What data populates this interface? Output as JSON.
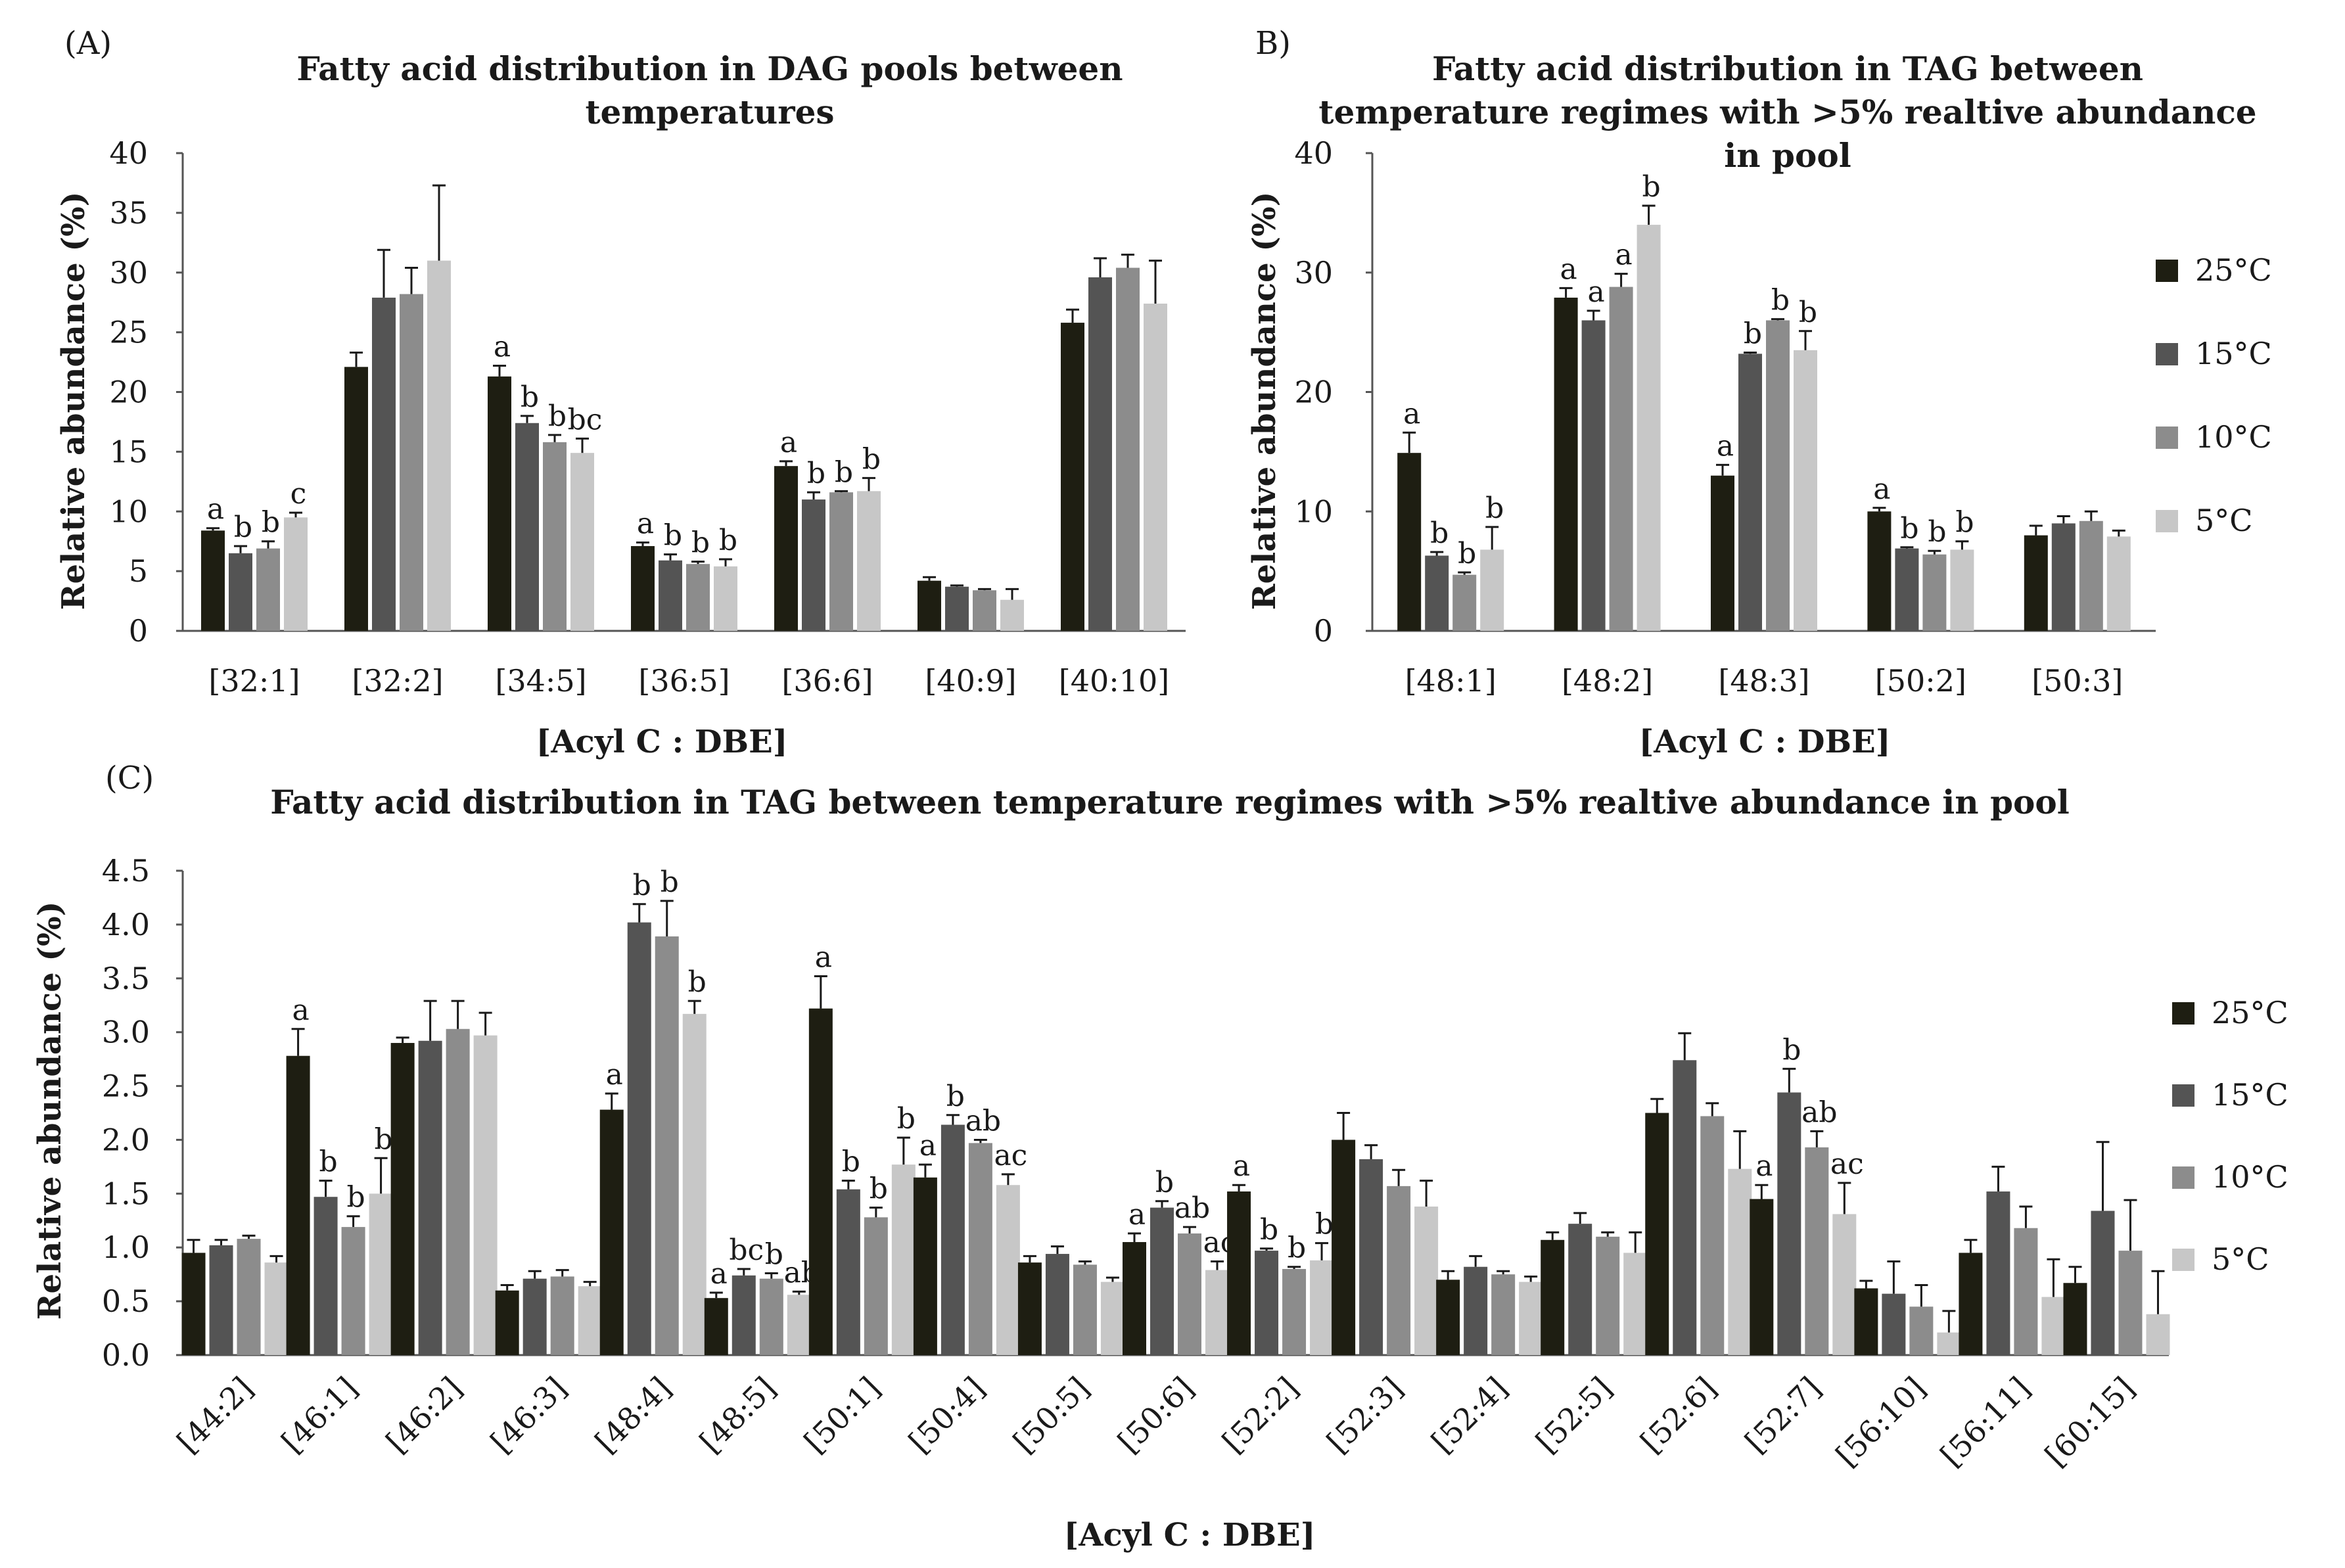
{
  "series_colors": [
    "#1e1e12",
    "#545454",
    "#8c8c8c",
    "#c7c7c7"
  ],
  "chart_data": [
    {
      "id": "A",
      "type": "bar",
      "panel_label": "(A)",
      "title_lines": [
        "Fatty acid distribution in DAG pools between",
        "temperatures"
      ],
      "xlabel": "[Acyl C : DBE]",
      "ylabel": "Relative abundance (%)",
      "ylim": [
        0,
        40
      ],
      "yticks": [
        "0",
        "5",
        "10",
        "15",
        "20",
        "25",
        "30",
        "35",
        "40"
      ],
      "ytick_values": [
        0,
        5,
        10,
        15,
        20,
        25,
        30,
        35,
        40
      ],
      "categories": [
        "[32:1]",
        "[32:2]",
        "[34:5]",
        "[36:5]",
        "[36:6]",
        "[40:9]",
        "[40:10]"
      ],
      "series": [
        {
          "name": "25°C",
          "values": [
            8.4,
            22.1,
            21.3,
            7.1,
            13.8,
            4.2,
            25.8
          ],
          "errors": [
            0.2,
            1.2,
            0.9,
            0.3,
            0.4,
            0.3,
            1.1
          ]
        },
        {
          "name": "15°C",
          "values": [
            6.5,
            27.9,
            17.4,
            5.9,
            11.0,
            3.7,
            29.6
          ],
          "errors": [
            0.6,
            4.0,
            0.6,
            0.5,
            0.6,
            0.1,
            1.6
          ]
        },
        {
          "name": "10°C",
          "values": [
            6.9,
            28.2,
            15.8,
            5.6,
            11.6,
            3.4,
            30.4
          ],
          "errors": [
            0.6,
            2.2,
            0.6,
            0.2,
            0.1,
            0.1,
            1.1
          ]
        },
        {
          "name": "5°C",
          "values": [
            9.5,
            31.0,
            14.9,
            5.4,
            11.7,
            2.6,
            27.4
          ],
          "errors": [
            0.4,
            6.3,
            1.2,
            0.6,
            1.1,
            0.9,
            3.6
          ]
        }
      ],
      "annotations": [
        [
          "a",
          "b",
          "b",
          "c"
        ],
        [
          "",
          "",
          "",
          ""
        ],
        [
          "a",
          "b",
          "b",
          "bc"
        ],
        [
          "a",
          "b",
          "b",
          "b"
        ],
        [
          "a",
          "b",
          "b",
          "b"
        ],
        [
          "",
          "",
          "",
          ""
        ],
        [
          "",
          "",
          "",
          ""
        ]
      ]
    },
    {
      "id": "B",
      "type": "bar",
      "panel_label": "B)",
      "title_lines": [
        "Fatty acid distribution in TAG between",
        "temperature regimes with >5% realtive abundance",
        "in pool"
      ],
      "xlabel": "[Acyl C : DBE]",
      "ylabel": "Relative abundance (%)",
      "ylim": [
        0,
        40
      ],
      "yticks": [
        "0",
        "10",
        "20",
        "30",
        "40"
      ],
      "ytick_values": [
        0,
        10,
        20,
        30,
        40
      ],
      "categories": [
        "[48:1]",
        "[48:2]",
        "[48:3]",
        "[50:2]",
        "[50:3]"
      ],
      "series": [
        {
          "name": "25°C",
          "values": [
            14.9,
            27.9,
            13.0,
            10.0,
            8.0
          ],
          "errors": [
            1.7,
            0.8,
            0.9,
            0.3,
            0.8
          ]
        },
        {
          "name": "15°C",
          "values": [
            6.3,
            26.0,
            23.2,
            6.9,
            9.0
          ],
          "errors": [
            0.3,
            0.8,
            0.1,
            0.1,
            0.6
          ]
        },
        {
          "name": "10°C",
          "values": [
            4.7,
            28.8,
            26.0,
            6.4,
            9.2
          ],
          "errors": [
            0.2,
            1.1,
            0.1,
            0.3,
            0.8
          ]
        },
        {
          "name": "5°C",
          "values": [
            6.8,
            34.0,
            23.5,
            6.8,
            7.9
          ],
          "errors": [
            1.9,
            1.6,
            1.6,
            0.7,
            0.5
          ]
        }
      ],
      "annotations": [
        [
          "a",
          "b",
          "b",
          "b"
        ],
        [
          "a",
          "a",
          "a",
          "b"
        ],
        [
          "a",
          "b",
          "b",
          "b"
        ],
        [
          "a",
          "b",
          "b",
          "b"
        ],
        [
          "",
          "",
          "",
          ""
        ]
      ],
      "legend": [
        "25°C",
        "15°C",
        "10°C",
        "5°C"
      ]
    },
    {
      "id": "C",
      "type": "bar",
      "panel_label": "(C)",
      "title_lines": [
        "Fatty acid distribution in TAG between temperature regimes with >5% realtive abundance in pool"
      ],
      "xlabel": "[Acyl C : DBE]",
      "ylabel": "Relative abundance (%)",
      "ylim": [
        0,
        4.5
      ],
      "yticks": [
        "0.0",
        "0.5",
        "1.0",
        "1.5",
        "2.0",
        "2.5",
        "3.0",
        "3.5",
        "4.0",
        "4.5"
      ],
      "ytick_values": [
        0,
        0.5,
        1.0,
        1.5,
        2.0,
        2.5,
        3.0,
        3.5,
        4.0,
        4.5
      ],
      "categories": [
        "[44:2]",
        "[46:1]",
        "[46:2]",
        "[46:3]",
        "[48:4]",
        "[48:5]",
        "[50:1]",
        "[50:4]",
        "[50:5]",
        "[50:6]",
        "[52:2]",
        "[52:3]",
        "[52:4]",
        "[52:5]",
        "[52:6]",
        "[52:7]",
        "[56:10]",
        "[56:11]",
        "[60:15]"
      ],
      "series": [
        {
          "name": "25°C",
          "values": [
            0.95,
            2.78,
            2.9,
            0.6,
            2.28,
            0.53,
            3.22,
            1.65,
            0.86,
            1.05,
            1.52,
            2.0,
            0.7,
            1.07,
            2.25,
            1.45,
            0.62,
            0.95,
            0.67
          ],
          "errors": [
            0.12,
            0.25,
            0.05,
            0.05,
            0.15,
            0.05,
            0.3,
            0.12,
            0.06,
            0.08,
            0.06,
            0.25,
            0.08,
            0.07,
            0.13,
            0.13,
            0.07,
            0.12,
            0.15
          ]
        },
        {
          "name": "15°C",
          "values": [
            1.02,
            1.47,
            2.92,
            0.71,
            4.02,
            0.74,
            1.54,
            2.14,
            0.94,
            1.37,
            0.97,
            1.82,
            0.82,
            1.22,
            2.74,
            2.44,
            0.57,
            1.52,
            1.34
          ],
          "errors": [
            0.05,
            0.15,
            0.37,
            0.07,
            0.17,
            0.06,
            0.08,
            0.09,
            0.07,
            0.06,
            0.02,
            0.13,
            0.1,
            0.1,
            0.25,
            0.22,
            0.3,
            0.23,
            0.64
          ]
        },
        {
          "name": "10°C",
          "values": [
            1.08,
            1.19,
            3.03,
            0.73,
            3.89,
            0.71,
            1.28,
            1.97,
            0.84,
            1.13,
            0.8,
            1.57,
            0.75,
            1.1,
            2.22,
            1.93,
            0.45,
            1.18,
            0.97
          ],
          "errors": [
            0.03,
            0.1,
            0.26,
            0.06,
            0.33,
            0.05,
            0.09,
            0.03,
            0.03,
            0.06,
            0.02,
            0.15,
            0.03,
            0.04,
            0.12,
            0.15,
            0.2,
            0.2,
            0.47
          ]
        },
        {
          "name": "5°C",
          "values": [
            0.86,
            1.5,
            2.97,
            0.64,
            3.17,
            0.56,
            1.77,
            1.58,
            0.68,
            0.79,
            0.88,
            1.38,
            0.68,
            0.95,
            1.73,
            1.31,
            0.21,
            0.54,
            0.38
          ],
          "errors": [
            0.06,
            0.33,
            0.21,
            0.04,
            0.12,
            0.03,
            0.25,
            0.1,
            0.04,
            0.08,
            0.16,
            0.24,
            0.05,
            0.19,
            0.35,
            0.29,
            0.2,
            0.35,
            0.4
          ]
        }
      ],
      "annotations": [
        [
          "",
          "",
          "",
          ""
        ],
        [
          "a",
          "b",
          "b",
          "b"
        ],
        [
          "",
          "",
          "",
          ""
        ],
        [
          "",
          "",
          "",
          ""
        ],
        [
          "a",
          "b",
          "b",
          "b"
        ],
        [
          "a",
          "bc",
          "b",
          "ab"
        ],
        [
          "a",
          "b",
          "b",
          "b"
        ],
        [
          "a",
          "b",
          "ab",
          "ac"
        ],
        [
          "",
          "",
          "",
          ""
        ],
        [
          "a",
          "b",
          "ab",
          "ac"
        ],
        [
          "a",
          "b",
          "b",
          "b"
        ],
        [
          "",
          "",
          "",
          ""
        ],
        [
          "",
          "",
          "",
          ""
        ],
        [
          "",
          "",
          "",
          ""
        ],
        [
          "",
          "",
          "",
          ""
        ],
        [
          "a",
          "b",
          "ab",
          "ac"
        ],
        [
          "",
          "",
          "",
          ""
        ],
        [
          "",
          "",
          "",
          ""
        ],
        [
          "",
          "",
          "",
          ""
        ]
      ],
      "legend": [
        "25°C",
        "15°C",
        "10°C",
        "5°C"
      ]
    }
  ]
}
